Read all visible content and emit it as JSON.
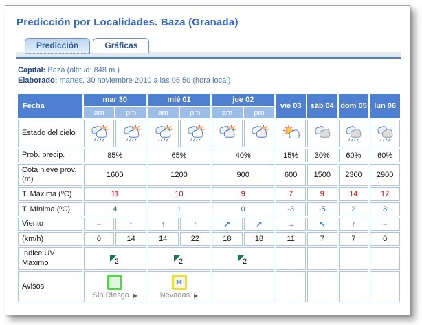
{
  "page": {
    "title": "Predicción por Localidades. Baza (Granada)"
  },
  "tabs": {
    "prediccion": "Predicción",
    "graficas": "Gráficas"
  },
  "meta": {
    "capital_label": "Capital:",
    "capital_value": " Baza (altitud: 848 m.)",
    "elaborado_label": "Elaborado:",
    "elaborado_value": " martes, 30 noviembre 2010 a las 05:50 (hora local)"
  },
  "colors": {
    "title_blue": "#3366cc",
    "header_blue": "#4e7fd1",
    "subheader_blue": "#9bbde8",
    "cell_border_blue": "#a9c4e8",
    "tmax_red": "#dd0000",
    "tmin_blue": "#336699",
    "wind_blue": "#4d7ec8",
    "aviso_green": "#55d54a",
    "aviso_yellow": "#e8df3e"
  },
  "table": {
    "corner": "Fecha",
    "days": [
      "mar 30",
      "mié 01",
      "jue 02",
      "vie 03",
      "sáb 04",
      "dom 05",
      "lun 06"
    ],
    "ampm": [
      "am",
      "pm",
      "am",
      "pm",
      "am",
      "pm"
    ],
    "sky": {
      "label": "Estado del cielo",
      "icons": [
        "sun-clouds-rain",
        "sun-clouds-rain",
        "sun-clouds-rain",
        "sun-clouds-rain",
        "sun-clouds",
        "sun-clouds",
        "sun-cloud",
        "clouds",
        "clouds-rain",
        "clouds-rain"
      ]
    },
    "precip": {
      "label": "Prob. precip.",
      "values": [
        "85%",
        "65%",
        "40%",
        "15%",
        "30%",
        "60%",
        "60%"
      ]
    },
    "snowlevel": {
      "label": "Cota nieve prov.(m)",
      "values": [
        "1600",
        "1200",
        "900",
        "600",
        "1500",
        "2300",
        "2900"
      ]
    },
    "tmax": {
      "label": "T. Máxima (ºC)",
      "values": [
        "11",
        "10",
        "9",
        "7",
        "9",
        "14",
        "17"
      ]
    },
    "tmin": {
      "label": "T. Mínima (ºC)",
      "values": [
        "4",
        "1",
        "0",
        "-3",
        "-5",
        "2",
        "8"
      ]
    },
    "wind": {
      "label": "Viento",
      "symbols": [
        "–",
        "↑",
        "↑",
        "↑",
        "↗",
        "↗",
        "→",
        "↖",
        "↑",
        "–"
      ]
    },
    "windspeed": {
      "label": "(km/h)",
      "values": [
        "0",
        "14",
        "14",
        "22",
        "18",
        "18",
        "11",
        "7",
        "7",
        "0"
      ]
    },
    "uv": {
      "label": "Indice UV Máximo",
      "values": [
        "2",
        "2",
        "2"
      ]
    },
    "avisos": {
      "label": "Avisos",
      "arrow": "▶",
      "snowflake": "❄",
      "items": [
        {
          "label": "Sin Riesgo",
          "type": "sin-riesgo"
        },
        {
          "label": "Nevadas",
          "type": "nevadas"
        }
      ]
    }
  }
}
